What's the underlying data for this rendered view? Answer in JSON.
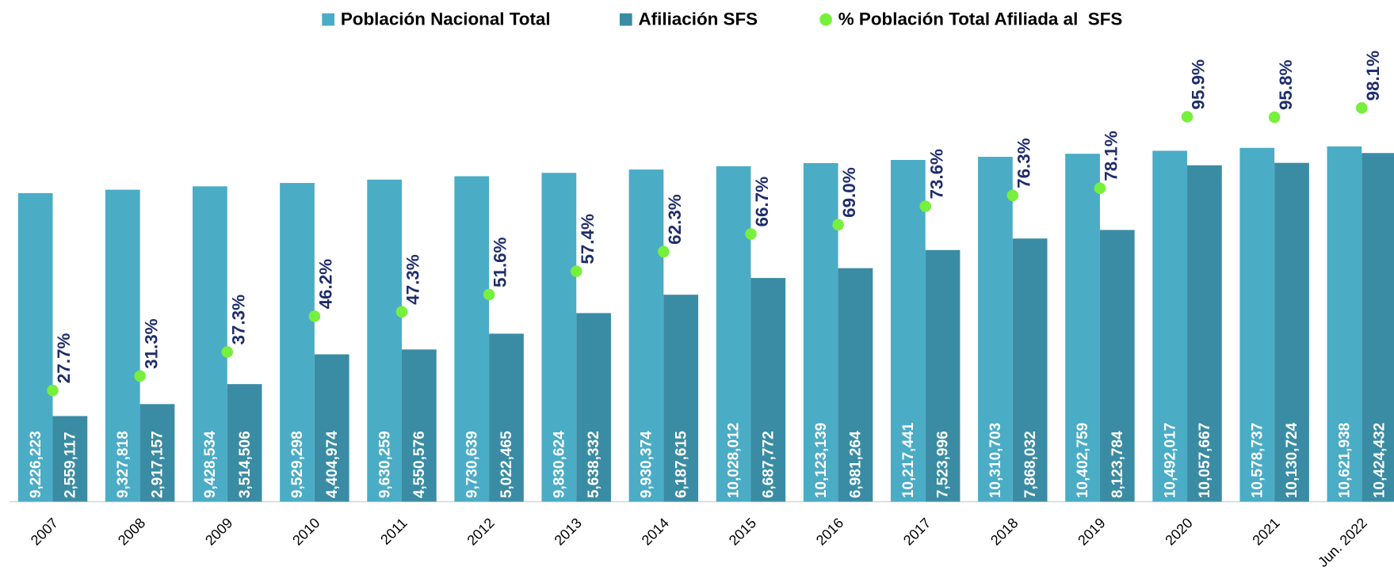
{
  "chart_data": {
    "type": "bar",
    "categories": [
      "2007",
      "2008",
      "2009",
      "2010",
      "2011",
      "2012",
      "2013",
      "2014",
      "2015",
      "2016",
      "2017",
      "2018",
      "2019",
      "2020",
      "2021",
      "Jun. 2022"
    ],
    "ylim": [
      0,
      12000000
    ],
    "y2lim": [
      0,
      100
    ],
    "series": [
      {
        "name": "Población Nacional Total",
        "color": "#4bacc6",
        "values": [
          9226223,
          9327818,
          9428534,
          9529298,
          9630259,
          9730639,
          9830624,
          9930374,
          10028012,
          10123139,
          10217441,
          10310703,
          10402759,
          10492017,
          10578737,
          10621938
        ],
        "value_labels": [
          "9,226,223",
          "9,327,818",
          "9,428,534",
          "9,529,298",
          "9,630,259",
          "9,730,639",
          "9,830,624",
          "9,930,374",
          "10,028,012",
          "10,123,139",
          "10,217,441",
          "10,310,703",
          "10,402,759",
          "10,492,017",
          "10,578,737",
          "10,621,938"
        ]
      },
      {
        "name": "Afiliación SFS",
        "color": "#3a8ca4",
        "values": [
          2559117,
          2917157,
          3514506,
          4404974,
          4550576,
          5022465,
          5638332,
          6187615,
          6687772,
          6981264,
          7523996,
          7868032,
          8123784,
          10057667,
          10130724,
          10424432
        ],
        "value_labels": [
          "2,559,117",
          "2,917,157",
          "3,514,506",
          "4,404,974",
          "4,550,576",
          "5,022,465",
          "5,638,332",
          "6,187,615",
          "6,687,772",
          "6,981,264",
          "7,523,996",
          "7,868,032",
          "8,123,784",
          "10,057,667",
          "10,130,724",
          "10,424,432"
        ]
      },
      {
        "name": "% Población Total Afiliada al  SFS",
        "color": "#76f03c",
        "axis": "y2",
        "type": "scatter",
        "values": [
          27.7,
          31.3,
          37.3,
          46.2,
          47.3,
          51.6,
          57.4,
          62.3,
          66.7,
          69.0,
          73.6,
          76.3,
          78.1,
          95.9,
          95.8,
          98.1
        ],
        "value_labels": [
          "27.7%",
          "31.3%",
          "37.3%",
          "46.2%",
          "47.3%",
          "51.6%",
          "57.4%",
          "62.3%",
          "66.7%",
          "69.0%",
          "73.6%",
          "76.3%",
          "78.1%",
          "95.9%",
          "95.8%",
          "98.1%"
        ]
      }
    ]
  }
}
